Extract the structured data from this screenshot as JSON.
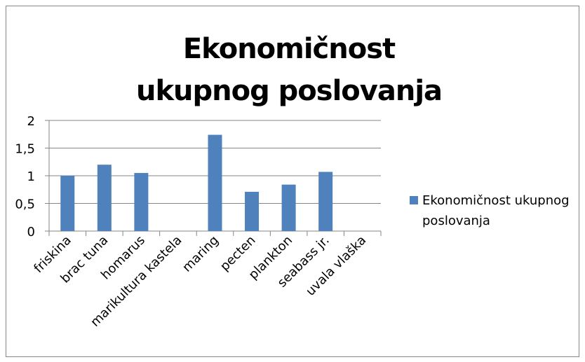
{
  "chart_data": {
    "type": "bar",
    "title": "Ekonomičnost ukupnog poslovanja",
    "categories": [
      "friskina",
      "brac tuna",
      "homarus",
      "marikultura kastela",
      "maring",
      "pecten",
      "plankton",
      "seabass jr.",
      "uvala vlaška"
    ],
    "series": [
      {
        "name": "Ekonomičnost ukupnog poslovanja",
        "color": "#4f81bd",
        "values": [
          1.0,
          1.2,
          1.05,
          null,
          1.74,
          0.71,
          0.84,
          1.07,
          null
        ]
      }
    ],
    "ylim": [
      0,
      2
    ],
    "yticks": [
      0,
      {
        "value": 0.5,
        "label": "0,5"
      },
      1,
      {
        "value": 1.5,
        "label": "1,5"
      },
      2
    ],
    "grid": true,
    "legend": "right"
  }
}
